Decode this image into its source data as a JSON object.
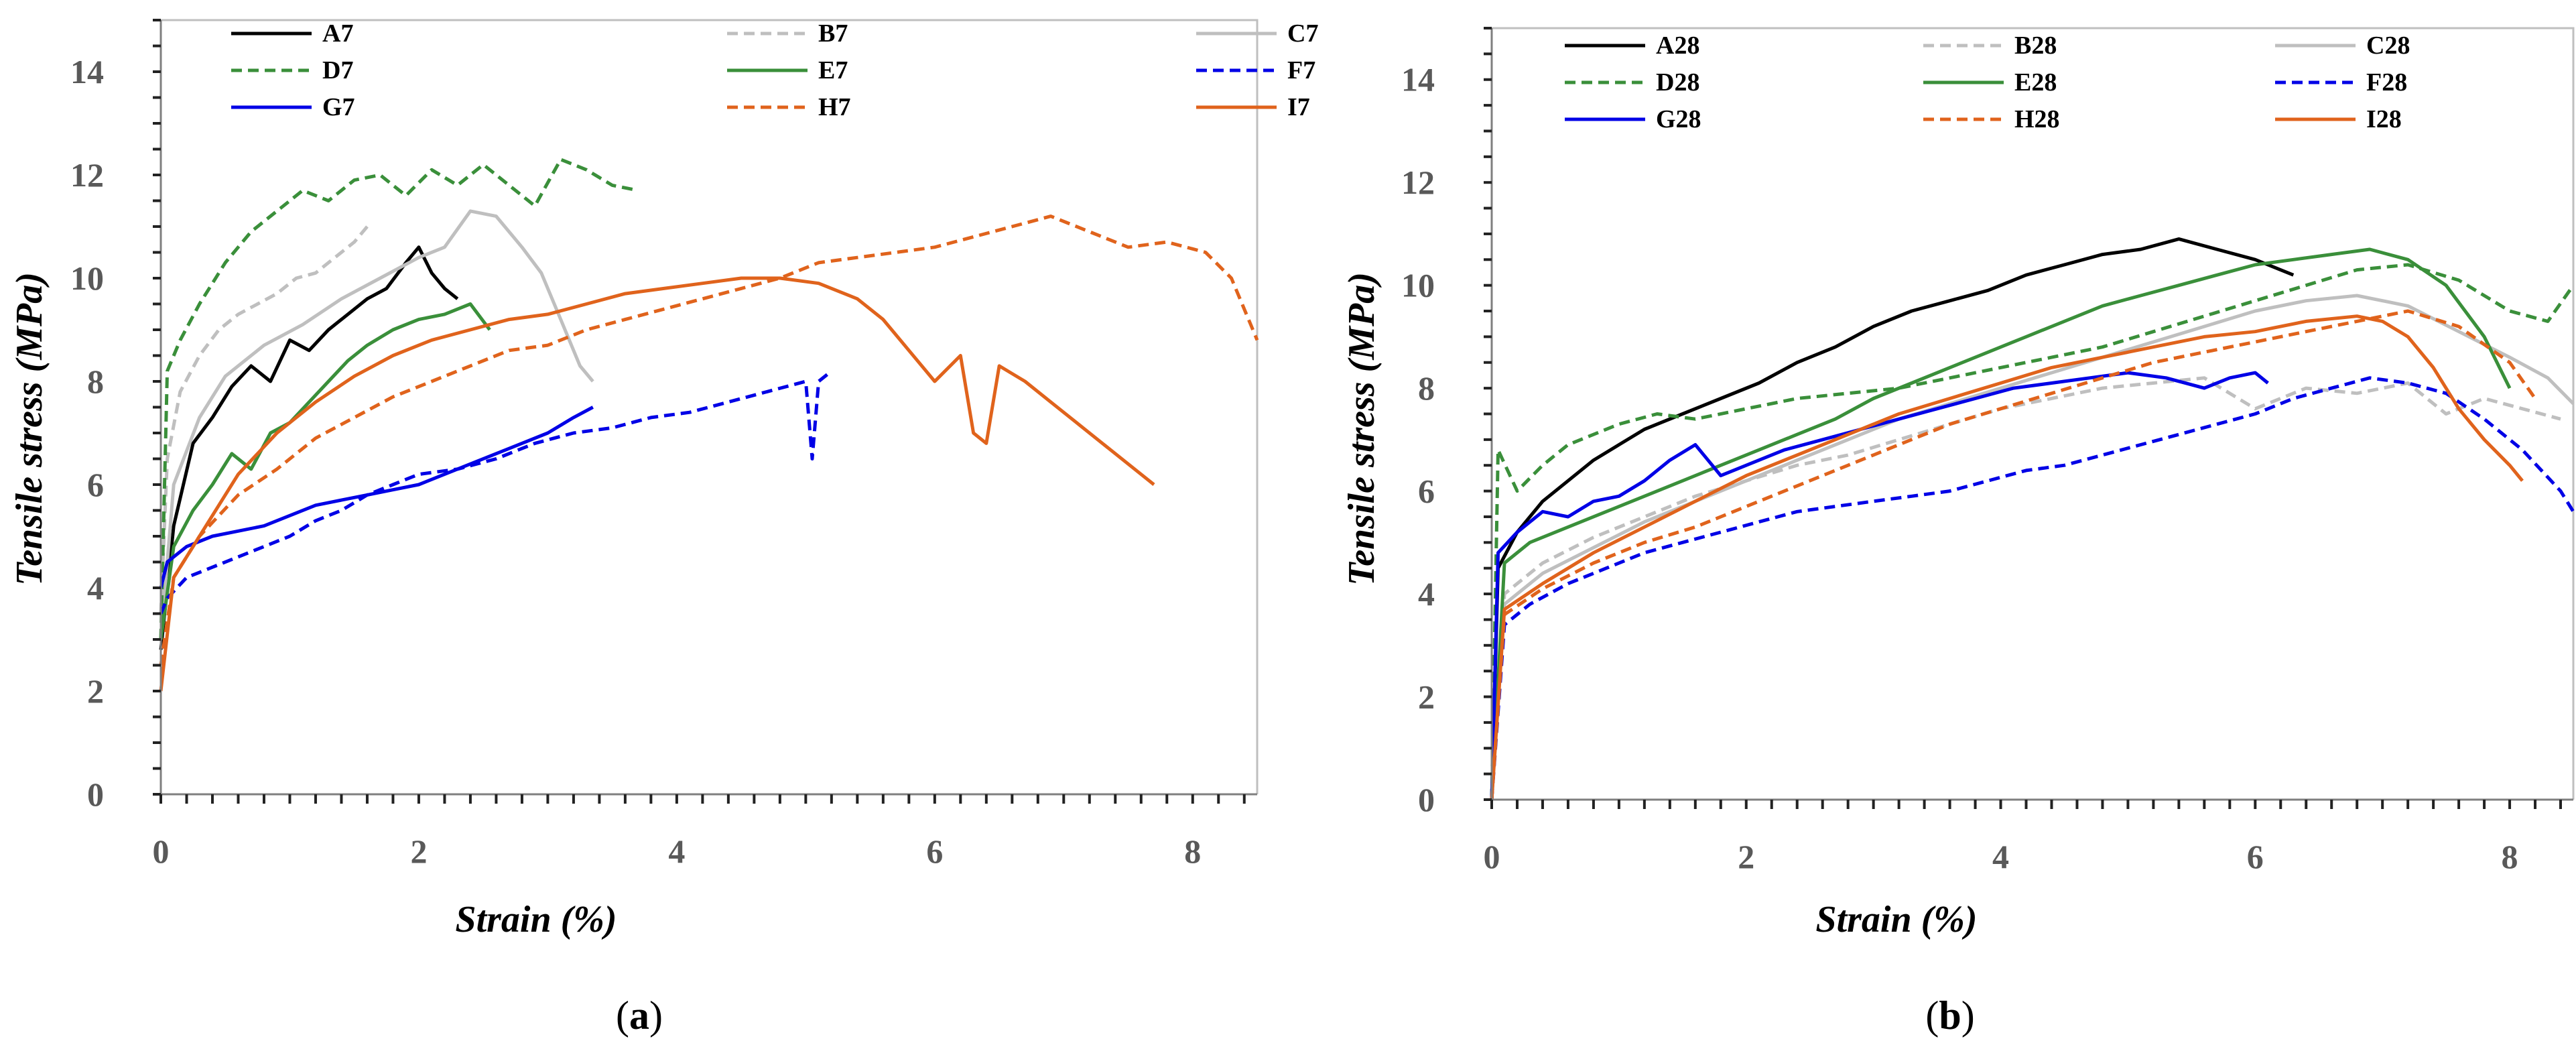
{
  "chart_data": [
    {
      "type": "line",
      "panel": "a",
      "panel_label": "a",
      "xlabel": "Strain (%)",
      "ylabel": "Tensile stress (MPa)",
      "xlim": [
        0,
        8.5
      ],
      "ylim": [
        0,
        15
      ],
      "xticks": [
        0,
        2,
        4,
        6,
        8
      ],
      "yticks": [
        0,
        2,
        4,
        6,
        8,
        10,
        12,
        14
      ],
      "grid": false,
      "legend_position": "top, 3 columns",
      "series": [
        {
          "name": "A7",
          "color": "#000000",
          "dash": "solid",
          "x": [
            0,
            0.1,
            0.25,
            0.4,
            0.55,
            0.7,
            0.85,
            1.0,
            1.15,
            1.3,
            1.45,
            1.6,
            1.75,
            1.9,
            2.0,
            2.1,
            2.2,
            2.3
          ],
          "y": [
            2.8,
            5.2,
            6.8,
            7.3,
            7.9,
            8.3,
            8.0,
            8.8,
            8.6,
            9.0,
            9.3,
            9.6,
            9.8,
            10.3,
            10.6,
            10.1,
            9.8,
            9.6
          ]
        },
        {
          "name": "B7",
          "color": "#bfbfbf",
          "dash": "dashed",
          "x": [
            0,
            0.05,
            0.15,
            0.3,
            0.45,
            0.6,
            0.75,
            0.9,
            1.05,
            1.2,
            1.35,
            1.5,
            1.6
          ],
          "y": [
            3.5,
            6.5,
            7.8,
            8.5,
            9.0,
            9.3,
            9.5,
            9.7,
            10.0,
            10.1,
            10.4,
            10.7,
            11.0
          ]
        },
        {
          "name": "C7",
          "color": "#bfbfbf",
          "dash": "solid",
          "x": [
            0,
            0.1,
            0.3,
            0.5,
            0.8,
            1.1,
            1.4,
            1.7,
            2.0,
            2.2,
            2.4,
            2.6,
            2.8,
            2.95,
            3.1,
            3.25,
            3.35
          ],
          "y": [
            3.0,
            6.0,
            7.3,
            8.1,
            8.7,
            9.1,
            9.6,
            10.0,
            10.4,
            10.6,
            11.3,
            11.2,
            10.6,
            10.1,
            9.2,
            8.3,
            8.0
          ]
        },
        {
          "name": "D7",
          "color": "#3a8f3a",
          "dash": "dashed",
          "x": [
            0,
            0.05,
            0.15,
            0.3,
            0.5,
            0.7,
            0.9,
            1.1,
            1.3,
            1.5,
            1.7,
            1.9,
            2.1,
            2.3,
            2.5,
            2.7,
            2.9,
            3.1,
            3.3,
            3.5,
            3.7
          ],
          "y": [
            3.0,
            8.2,
            8.8,
            9.5,
            10.3,
            10.9,
            11.3,
            11.7,
            11.5,
            11.9,
            12.0,
            11.6,
            12.1,
            11.8,
            12.2,
            11.8,
            11.4,
            12.3,
            12.1,
            11.8,
            11.7
          ]
        },
        {
          "name": "E7",
          "color": "#3a8f3a",
          "dash": "solid",
          "x": [
            0,
            0.1,
            0.25,
            0.4,
            0.55,
            0.7,
            0.85,
            1.0,
            1.15,
            1.3,
            1.45,
            1.6,
            1.8,
            2.0,
            2.2,
            2.4,
            2.55
          ],
          "y": [
            3.0,
            4.8,
            5.5,
            6.0,
            6.6,
            6.3,
            7.0,
            7.2,
            7.6,
            8.0,
            8.4,
            8.7,
            9.0,
            9.2,
            9.3,
            9.5,
            9.0
          ]
        },
        {
          "name": "F7",
          "color": "#0000e6",
          "dash": "dashed",
          "x": [
            0,
            0.05,
            0.2,
            0.4,
            0.6,
            0.8,
            1.0,
            1.2,
            1.4,
            1.6,
            1.8,
            2.0,
            2.3,
            2.6,
            2.9,
            3.2,
            3.5,
            3.8,
            4.1,
            4.4,
            4.7,
            5.0,
            5.05,
            5.1,
            5.2
          ],
          "y": [
            3.5,
            3.8,
            4.2,
            4.4,
            4.6,
            4.8,
            5.0,
            5.3,
            5.5,
            5.8,
            6.0,
            6.2,
            6.3,
            6.5,
            6.8,
            7.0,
            7.1,
            7.3,
            7.4,
            7.6,
            7.8,
            8.0,
            6.5,
            8.0,
            8.2
          ]
        },
        {
          "name": "G7",
          "color": "#0000e6",
          "dash": "solid",
          "x": [
            0,
            0.05,
            0.2,
            0.4,
            0.6,
            0.8,
            1.0,
            1.2,
            1.4,
            1.6,
            1.8,
            2.0,
            2.2,
            2.4,
            2.6,
            2.8,
            3.0,
            3.2,
            3.35
          ],
          "y": [
            4.0,
            4.5,
            4.8,
            5.0,
            5.1,
            5.2,
            5.4,
            5.6,
            5.7,
            5.8,
            5.9,
            6.0,
            6.2,
            6.4,
            6.6,
            6.8,
            7.0,
            7.3,
            7.5
          ]
        },
        {
          "name": "H7",
          "color": "#e0631c",
          "dash": "dashed",
          "x": [
            0,
            0.1,
            0.3,
            0.6,
            0.9,
            1.2,
            1.5,
            1.8,
            2.1,
            2.4,
            2.7,
            3.0,
            3.3,
            3.6,
            3.9,
            4.2,
            4.5,
            4.8,
            5.1,
            5.4,
            5.7,
            6.0,
            6.3,
            6.6,
            6.9,
            7.2,
            7.5,
            7.8,
            8.1,
            8.3,
            8.5
          ],
          "y": [
            2.5,
            4.2,
            5.0,
            5.8,
            6.3,
            6.9,
            7.3,
            7.7,
            8.0,
            8.3,
            8.6,
            8.7,
            9.0,
            9.2,
            9.4,
            9.6,
            9.8,
            10.0,
            10.3,
            10.4,
            10.5,
            10.6,
            10.8,
            11.0,
            11.2,
            10.9,
            10.6,
            10.7,
            10.5,
            10.0,
            8.8
          ]
        },
        {
          "name": "I7",
          "color": "#e0631c",
          "dash": "solid",
          "x": [
            0,
            0.1,
            0.3,
            0.6,
            0.9,
            1.2,
            1.5,
            1.8,
            2.1,
            2.4,
            2.7,
            3.0,
            3.3,
            3.6,
            3.9,
            4.2,
            4.5,
            4.8,
            5.1,
            5.4,
            5.6,
            5.8,
            6.0,
            6.2,
            6.3,
            6.4,
            6.5,
            6.7,
            6.9,
            7.1,
            7.3,
            7.5,
            7.65,
            7.7
          ],
          "y": [
            2.0,
            4.2,
            5.0,
            6.2,
            7.0,
            7.6,
            8.1,
            8.5,
            8.8,
            9.0,
            9.2,
            9.3,
            9.5,
            9.7,
            9.8,
            9.9,
            10.0,
            10.0,
            9.9,
            9.6,
            9.2,
            8.6,
            8.0,
            8.5,
            7.0,
            6.8,
            8.3,
            8.0,
            7.6,
            7.2,
            6.8,
            6.4,
            6.1,
            6.0
          ]
        }
      ]
    },
    {
      "type": "line",
      "panel": "b",
      "panel_label": "b",
      "xlabel": "Strain (%)",
      "ylabel": "Tensile stress (MPa)",
      "xlim": [
        0,
        8.5
      ],
      "ylim": [
        0,
        15
      ],
      "xticks": [
        0,
        2,
        4,
        6,
        8
      ],
      "yticks": [
        0,
        2,
        4,
        6,
        8,
        10,
        12,
        14
      ],
      "grid": false,
      "legend_position": "top, 3 columns",
      "series": [
        {
          "name": "A28",
          "color": "#000000",
          "dash": "solid",
          "x": [
            0,
            0.05,
            0.2,
            0.4,
            0.6,
            0.8,
            1.0,
            1.2,
            1.5,
            1.8,
            2.1,
            2.4,
            2.7,
            3.0,
            3.3,
            3.6,
            3.9,
            4.2,
            4.5,
            4.8,
            5.1,
            5.4,
            5.7,
            6.0,
            6.3
          ],
          "y": [
            0,
            4.5,
            5.2,
            5.8,
            6.2,
            6.6,
            6.9,
            7.2,
            7.5,
            7.8,
            8.1,
            8.5,
            8.8,
            9.2,
            9.5,
            9.7,
            9.9,
            10.2,
            10.4,
            10.6,
            10.7,
            10.9,
            10.7,
            10.5,
            10.2
          ]
        },
        {
          "name": "B28",
          "color": "#bfbfbf",
          "dash": "dashed",
          "x": [
            0,
            0.1,
            0.4,
            0.8,
            1.2,
            1.6,
            2.0,
            2.4,
            2.8,
            3.2,
            3.6,
            4.0,
            4.4,
            4.8,
            5.2,
            5.6,
            6.0,
            6.4,
            6.8,
            7.2,
            7.5,
            7.8,
            8.1,
            8.4
          ],
          "y": [
            0,
            4.0,
            4.6,
            5.1,
            5.5,
            5.9,
            6.2,
            6.5,
            6.7,
            7.0,
            7.3,
            7.6,
            7.8,
            8.0,
            8.1,
            8.2,
            7.6,
            8.0,
            7.9,
            8.1,
            7.5,
            7.8,
            7.6,
            7.4
          ]
        },
        {
          "name": "C28",
          "color": "#bfbfbf",
          "dash": "solid",
          "x": [
            0,
            0.1,
            0.4,
            0.8,
            1.2,
            1.6,
            2.0,
            2.4,
            2.8,
            3.2,
            3.6,
            4.0,
            4.4,
            4.8,
            5.2,
            5.6,
            6.0,
            6.4,
            6.8,
            7.2,
            7.6,
            8.0,
            8.3,
            8.5
          ],
          "y": [
            0,
            3.8,
            4.4,
            4.9,
            5.4,
            5.8,
            6.2,
            6.6,
            7.0,
            7.4,
            7.7,
            8.0,
            8.3,
            8.6,
            8.9,
            9.2,
            9.5,
            9.7,
            9.8,
            9.6,
            9.1,
            8.6,
            8.2,
            7.7
          ]
        },
        {
          "name": "D28",
          "color": "#3a8f3a",
          "dash": "dashed",
          "x": [
            0,
            0.05,
            0.2,
            0.4,
            0.6,
            0.8,
            1.0,
            1.3,
            1.6,
            2.0,
            2.4,
            2.8,
            3.2,
            3.6,
            4.0,
            4.4,
            4.8,
            5.2,
            5.6,
            6.0,
            6.4,
            6.8,
            7.2,
            7.6,
            8.0,
            8.3,
            8.5
          ],
          "y": [
            0,
            6.8,
            6.0,
            6.5,
            6.9,
            7.1,
            7.3,
            7.5,
            7.4,
            7.6,
            7.8,
            7.9,
            8.0,
            8.2,
            8.4,
            8.6,
            8.8,
            9.1,
            9.4,
            9.7,
            10.0,
            10.3,
            10.4,
            10.1,
            9.5,
            9.3,
            10.0
          ]
        },
        {
          "name": "E28",
          "color": "#3a8f3a",
          "dash": "solid",
          "x": [
            0,
            0.1,
            0.3,
            0.6,
            0.9,
            1.2,
            1.5,
            1.8,
            2.1,
            2.4,
            2.7,
            3.0,
            3.3,
            3.6,
            3.9,
            4.2,
            4.5,
            4.8,
            5.1,
            5.4,
            5.7,
            6.0,
            6.3,
            6.6,
            6.9,
            7.2,
            7.5,
            7.8,
            8.0
          ],
          "y": [
            0,
            4.6,
            5.0,
            5.3,
            5.6,
            5.9,
            6.2,
            6.5,
            6.8,
            7.1,
            7.4,
            7.8,
            8.1,
            8.4,
            8.7,
            9.0,
            9.3,
            9.6,
            9.8,
            10.0,
            10.2,
            10.4,
            10.5,
            10.6,
            10.7,
            10.5,
            10.0,
            9.0,
            8.0
          ]
        },
        {
          "name": "F28",
          "color": "#0000e6",
          "dash": "dashed",
          "x": [
            0,
            0.1,
            0.3,
            0.6,
            0.9,
            1.2,
            1.5,
            1.8,
            2.1,
            2.4,
            2.7,
            3.0,
            3.3,
            3.6,
            3.9,
            4.2,
            4.5,
            4.8,
            5.1,
            5.4,
            5.7,
            6.0,
            6.3,
            6.6,
            6.9,
            7.2,
            7.5,
            7.8,
            8.1,
            8.4,
            8.5
          ],
          "y": [
            0,
            3.4,
            3.8,
            4.2,
            4.5,
            4.8,
            5.0,
            5.2,
            5.4,
            5.6,
            5.7,
            5.8,
            5.9,
            6.0,
            6.2,
            6.4,
            6.5,
            6.7,
            6.9,
            7.1,
            7.3,
            7.5,
            7.8,
            8.0,
            8.2,
            8.1,
            7.9,
            7.4,
            6.8,
            6.0,
            5.6
          ]
        },
        {
          "name": "G28",
          "color": "#0000e6",
          "dash": "solid",
          "x": [
            0,
            0.05,
            0.2,
            0.4,
            0.6,
            0.8,
            1.0,
            1.2,
            1.4,
            1.6,
            1.8,
            2.0,
            2.3,
            2.6,
            2.9,
            3.2,
            3.5,
            3.8,
            4.1,
            4.4,
            4.7,
            5.0,
            5.3,
            5.6,
            5.8,
            6.0,
            6.1
          ],
          "y": [
            0,
            4.8,
            5.2,
            5.6,
            5.5,
            5.8,
            5.9,
            6.2,
            6.6,
            6.9,
            6.3,
            6.5,
            6.8,
            7.0,
            7.2,
            7.4,
            7.6,
            7.8,
            8.0,
            8.1,
            8.2,
            8.3,
            8.2,
            8.0,
            8.2,
            8.3,
            8.1
          ]
        },
        {
          "name": "H28",
          "color": "#e0631c",
          "dash": "dashed",
          "x": [
            0,
            0.1,
            0.4,
            0.8,
            1.2,
            1.6,
            2.0,
            2.4,
            2.8,
            3.2,
            3.6,
            4.0,
            4.4,
            4.8,
            5.2,
            5.6,
            6.0,
            6.4,
            6.8,
            7.2,
            7.6,
            8.0,
            8.2
          ],
          "y": [
            0,
            3.6,
            4.1,
            4.6,
            5.0,
            5.3,
            5.7,
            6.1,
            6.5,
            6.9,
            7.3,
            7.6,
            7.9,
            8.2,
            8.5,
            8.7,
            8.9,
            9.1,
            9.3,
            9.5,
            9.2,
            8.5,
            7.8
          ]
        },
        {
          "name": "I28",
          "color": "#e0631c",
          "dash": "solid",
          "x": [
            0,
            0.1,
            0.4,
            0.8,
            1.2,
            1.6,
            2.0,
            2.4,
            2.8,
            3.2,
            3.6,
            4.0,
            4.4,
            4.8,
            5.2,
            5.6,
            6.0,
            6.4,
            6.8,
            7.0,
            7.2,
            7.4,
            7.6,
            7.8,
            8.0,
            8.1
          ],
          "y": [
            0,
            3.7,
            4.2,
            4.8,
            5.3,
            5.8,
            6.3,
            6.7,
            7.1,
            7.5,
            7.8,
            8.1,
            8.4,
            8.6,
            8.8,
            9.0,
            9.1,
            9.3,
            9.4,
            9.3,
            9.0,
            8.4,
            7.6,
            7.0,
            6.5,
            6.2
          ]
        }
      ]
    }
  ]
}
